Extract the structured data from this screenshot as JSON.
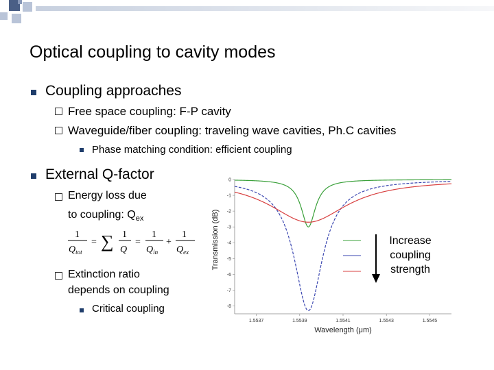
{
  "slide": {
    "title": "Optical coupling to cavity modes",
    "bullets": {
      "coupling_approaches": "Coupling approaches",
      "free_space": "Free space coupling: F-P cavity",
      "waveguide": "Waveguide/fiber coupling: traveling wave cavities, Ph.C cavities",
      "phase_matching": "Phase matching condition: efficient coupling",
      "external_q": "External Q-factor",
      "energy_loss_line1": "Energy loss due",
      "energy_loss_line2": "to coupling: Q",
      "energy_loss_sub": "ex",
      "extinction_line1": "Extinction ratio",
      "extinction_line2": "depends on coupling",
      "critical": "Critical coupling"
    },
    "equation": {
      "q_tot": "Q",
      "tot_sub": "tot",
      "q": "Q",
      "q_in": "Q",
      "in_sub": "in",
      "q_ex": "Q",
      "ex_sub": "ex",
      "one": "1",
      "equals": "=",
      "plus": "+",
      "sum": "∑"
    },
    "annotation": {
      "line1": "Increase",
      "line2": "coupling",
      "line3": "strength"
    }
  },
  "colors": {
    "bullet": "#1f3d6b",
    "green": "#3aa03a",
    "blue": "#3a46b0",
    "red": "#d84040",
    "deco_dark": "#4a5f86",
    "deco_light": "#b9c4d8"
  },
  "chart_data": {
    "type": "line",
    "xlabel": "Wavelength (μm)",
    "ylabel": "Transmission (dB)",
    "xlim": [
      1.5536,
      1.5546
    ],
    "ylim": [
      -8.5,
      0
    ],
    "x_ticks": [
      "1.5537",
      "1.5539",
      "1.5541",
      "1.5543",
      "1.5545"
    ],
    "x_tick_values": [
      1.5537,
      1.5539,
      1.5541,
      1.5543,
      1.5545
    ],
    "y_ticks": [
      "0",
      "-1",
      "-2",
      "-3",
      "-4",
      "-5",
      "-6",
      "-7",
      "-8"
    ],
    "y_tick_values": [
      0,
      -1,
      -2,
      -3,
      -4,
      -5,
      -6,
      -7,
      -8
    ],
    "series": [
      {
        "color": "green",
        "center": 1.55394,
        "depth": 3.0,
        "width": 4e-05
      },
      {
        "color": "blue",
        "center": 1.55394,
        "depth": 8.3,
        "width": 8e-05
      },
      {
        "color": "red",
        "center": 1.55394,
        "depth": 2.7,
        "width": 0.00022
      }
    ]
  }
}
